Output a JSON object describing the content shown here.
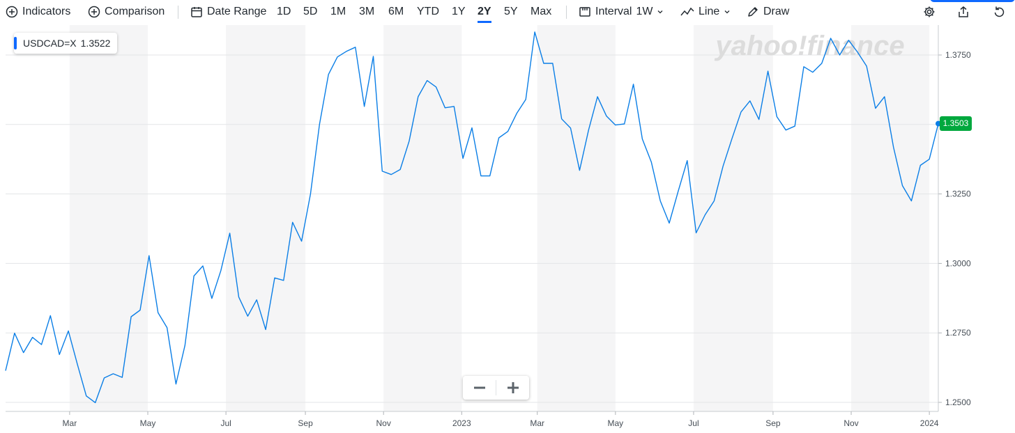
{
  "toolbar": {
    "indicators": "Indicators",
    "comparison": "Comparison",
    "date_range": "Date Range",
    "ranges": [
      "1D",
      "5D",
      "1M",
      "3M",
      "6M",
      "YTD",
      "1Y",
      "2Y",
      "5Y",
      "Max"
    ],
    "active_range": "2Y",
    "interval_label": "Interval",
    "interval_value": "1W",
    "chart_type": "Line",
    "draw": "Draw"
  },
  "legend": {
    "symbol": "USDCAD=X",
    "value": "1.3522"
  },
  "watermark": "yahoo!finance",
  "current_price_tag": "1.3503",
  "zoom": {
    "out": "−",
    "in": "+"
  },
  "colors": {
    "line": "#0a7ee6",
    "band": "#f5f5f6",
    "price_tag": "#00a83e",
    "accent": "#0f69ff"
  },
  "chart_data": {
    "type": "line",
    "title": "",
    "xlabel": "",
    "ylabel": "",
    "ylim": [
      1.2475,
      1.3875
    ],
    "yticks": [
      "1.2500",
      "1.2750",
      "1.3000",
      "1.3250",
      "1.3500",
      "1.3750"
    ],
    "x_start": "2022-01-10",
    "x_end": "2024-01-08",
    "x_ticks": [
      {
        "label": "Mar",
        "date": "2022-03-01"
      },
      {
        "label": "May",
        "date": "2022-05-01"
      },
      {
        "label": "Jul",
        "date": "2022-07-01"
      },
      {
        "label": "Sep",
        "date": "2022-09-01"
      },
      {
        "label": "Nov",
        "date": "2022-11-01"
      },
      {
        "label": "2023",
        "date": "2023-01-01"
      },
      {
        "label": "Mar",
        "date": "2023-03-01"
      },
      {
        "label": "May",
        "date": "2023-05-01"
      },
      {
        "label": "Jul",
        "date": "2023-07-01"
      },
      {
        "label": "Sep",
        "date": "2023-09-01"
      },
      {
        "label": "Nov",
        "date": "2023-11-01"
      },
      {
        "label": "2024",
        "date": "2024-01-01"
      }
    ],
    "series": [
      {
        "name": "USDCAD=X",
        "x": [
          "2022-01-10",
          "2022-01-17",
          "2022-01-24",
          "2022-01-31",
          "2022-02-07",
          "2022-02-14",
          "2022-02-21",
          "2022-02-28",
          "2022-03-07",
          "2022-03-14",
          "2022-03-21",
          "2022-03-28",
          "2022-04-04",
          "2022-04-11",
          "2022-04-18",
          "2022-04-25",
          "2022-05-02",
          "2022-05-09",
          "2022-05-16",
          "2022-05-23",
          "2022-05-30",
          "2022-06-06",
          "2022-06-13",
          "2022-06-20",
          "2022-06-27",
          "2022-07-04",
          "2022-07-11",
          "2022-07-18",
          "2022-07-25",
          "2022-08-01",
          "2022-08-08",
          "2022-08-15",
          "2022-08-22",
          "2022-08-29",
          "2022-09-05",
          "2022-09-12",
          "2022-09-19",
          "2022-09-26",
          "2022-10-03",
          "2022-10-10",
          "2022-10-17",
          "2022-10-24",
          "2022-10-31",
          "2022-11-07",
          "2022-11-14",
          "2022-11-21",
          "2022-11-28",
          "2022-12-05",
          "2022-12-12",
          "2022-12-19",
          "2022-12-26",
          "2023-01-02",
          "2023-01-09",
          "2023-01-16",
          "2023-01-23",
          "2023-01-30",
          "2023-02-06",
          "2023-02-13",
          "2023-02-20",
          "2023-02-27",
          "2023-03-06",
          "2023-03-13",
          "2023-03-20",
          "2023-03-27",
          "2023-04-03",
          "2023-04-10",
          "2023-04-17",
          "2023-04-24",
          "2023-05-01",
          "2023-05-08",
          "2023-05-15",
          "2023-05-22",
          "2023-05-29",
          "2023-06-05",
          "2023-06-12",
          "2023-06-19",
          "2023-06-26",
          "2023-07-03",
          "2023-07-10",
          "2023-07-17",
          "2023-07-24",
          "2023-07-31",
          "2023-08-07",
          "2023-08-14",
          "2023-08-21",
          "2023-08-28",
          "2023-09-04",
          "2023-09-11",
          "2023-09-18",
          "2023-09-25",
          "2023-10-02",
          "2023-10-09",
          "2023-10-16",
          "2023-10-23",
          "2023-10-30",
          "2023-11-06",
          "2023-11-13",
          "2023-11-20",
          "2023-11-27",
          "2023-12-04",
          "2023-12-11",
          "2023-12-18",
          "2023-12-25",
          "2024-01-01",
          "2024-01-08"
        ],
        "values": [
          1.2614,
          1.2749,
          1.2679,
          1.2734,
          1.2708,
          1.2812,
          1.2672,
          1.2757,
          1.2638,
          1.2523,
          1.2499,
          1.2588,
          1.2603,
          1.259,
          1.2808,
          1.2832,
          1.3028,
          1.2823,
          1.2769,
          1.2566,
          1.2705,
          1.2955,
          1.2991,
          1.2874,
          1.2974,
          1.3109,
          1.2879,
          1.281,
          1.2869,
          1.2762,
          1.2948,
          1.2939,
          1.3148,
          1.308,
          1.325,
          1.35,
          1.368,
          1.3743,
          1.3763,
          1.3778,
          1.3565,
          1.3745,
          1.3332,
          1.332,
          1.3338,
          1.344,
          1.36,
          1.3658,
          1.3635,
          1.356,
          1.3565,
          1.3378,
          1.3488,
          1.3315,
          1.3315,
          1.3452,
          1.3475,
          1.354,
          1.359,
          1.3833,
          1.372,
          1.372,
          1.352,
          1.3487,
          1.3335,
          1.348,
          1.36,
          1.353,
          1.3498,
          1.3502,
          1.3645,
          1.3448,
          1.3365,
          1.3225,
          1.3145,
          1.326,
          1.337,
          1.311,
          1.3175,
          1.3225,
          1.335,
          1.345,
          1.3545,
          1.3585,
          1.3518,
          1.3692,
          1.3528,
          1.348,
          1.3494,
          1.3708,
          1.3688,
          1.372,
          1.381,
          1.375,
          1.3803,
          1.376,
          1.371,
          1.3558,
          1.36,
          1.3418,
          1.328,
          1.3225,
          1.3353,
          1.3375,
          1.3503
        ]
      }
    ]
  }
}
